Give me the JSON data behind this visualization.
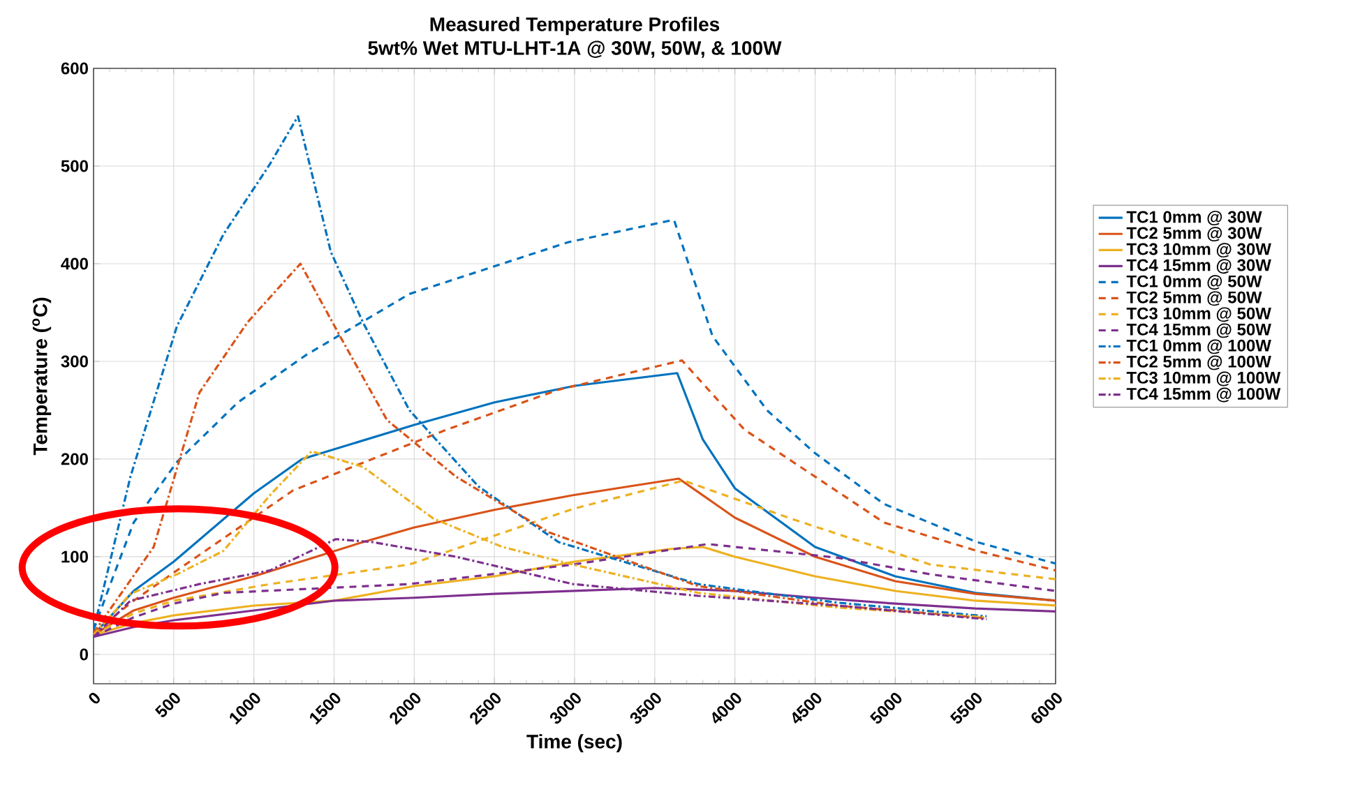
{
  "chart_data": {
    "type": "line",
    "title": "Measured Temperature Profiles",
    "subtitle": "5wt% Wet MTU-LHT-1A @ 30W, 50W, & 100W",
    "xlabel": "Time (sec)",
    "ylabel": "Temperature ($^{o}$C)",
    "xlim": [
      0,
      6000
    ],
    "ylim": [
      -30,
      600
    ],
    "xticks": [
      0,
      500,
      1000,
      1500,
      2000,
      2500,
      3000,
      3500,
      4000,
      4500,
      5000,
      5500,
      6000
    ],
    "yticks": [
      0,
      100,
      200,
      300,
      400,
      500,
      600
    ],
    "grid": true,
    "legend": "right",
    "series": [
      {
        "name": "TC1 0mm @ 30W",
        "color": "#0072bd",
        "line_style": "solid",
        "x": [
          0,
          250,
          500,
          1000,
          1300,
          2000,
          2500,
          3000,
          3640,
          3800,
          4000,
          4500,
          5000,
          5500,
          6000
        ],
        "values": [
          20,
          65,
          95,
          165,
          200,
          235,
          258,
          275,
          288,
          220,
          170,
          110,
          80,
          63,
          55
        ]
      },
      {
        "name": "TC2 5mm @ 30W",
        "color": "#d95319",
        "line_style": "solid",
        "x": [
          0,
          250,
          500,
          1000,
          1680,
          2000,
          2500,
          2990,
          3650,
          4000,
          4500,
          5000,
          5500,
          6000
        ],
        "values": [
          20,
          45,
          58,
          80,
          115,
          130,
          148,
          163,
          180,
          140,
          100,
          75,
          62,
          55
        ]
      },
      {
        "name": "TC3 10mm @ 30W",
        "color": "#edb120",
        "line_style": "solid",
        "x": [
          0,
          250,
          500,
          1000,
          1500,
          2000,
          2500,
          3000,
          3600,
          3800,
          4000,
          4500,
          5000,
          5500,
          6000
        ],
        "values": [
          20,
          32,
          40,
          50,
          55,
          70,
          80,
          95,
          108,
          110,
          100,
          80,
          65,
          55,
          50
        ]
      },
      {
        "name": "TC4 15mm @ 30W",
        "color": "#7e2f8e",
        "line_style": "solid",
        "x": [
          0,
          250,
          500,
          1000,
          1500,
          2000,
          2500,
          3000,
          3500,
          4000,
          4500,
          5000,
          5500,
          6000
        ],
        "values": [
          18,
          28,
          35,
          45,
          55,
          58,
          62,
          65,
          68,
          65,
          58,
          52,
          47,
          44
        ]
      },
      {
        "name": "TC1 0mm @ 50W",
        "color": "#0072bd",
        "line_style": "dashed",
        "x": [
          0,
          100,
          250,
          520,
          900,
          1330,
          1970,
          2960,
          3620,
          3860,
          4200,
          4500,
          4930,
          5510,
          6000
        ],
        "values": [
          25,
          70,
          135,
          197,
          258,
          307,
          369,
          422,
          445,
          326,
          250,
          206,
          154,
          115,
          93
        ]
      },
      {
        "name": "TC2 5mm @ 50W",
        "color": "#d95319",
        "line_style": "dashed",
        "x": [
          0,
          250,
          520,
          1245,
          2200,
          2900,
          3670,
          4060,
          4500,
          4930,
          5510,
          6000
        ],
        "values": [
          22,
          55,
          86,
          168,
          230,
          271,
          301,
          230,
          182,
          135,
          106,
          86
        ]
      },
      {
        "name": "TC3 10mm @ 50W",
        "color": "#edb120",
        "line_style": "dashed",
        "x": [
          0,
          250,
          500,
          1100,
          1970,
          2990,
          3680,
          4350,
          5220,
          6000
        ],
        "values": [
          20,
          42,
          55,
          72,
          92,
          149,
          178,
          139,
          92,
          77
        ]
      },
      {
        "name": "TC4 15mm @ 50W",
        "color": "#7e2f8e",
        "line_style": "dashed",
        "x": [
          0,
          250,
          500,
          810,
          1970,
          2990,
          3830,
          4640,
          5220,
          6000
        ],
        "values": [
          18,
          38,
          52,
          63,
          72,
          92,
          113,
          99,
          82,
          65
        ]
      },
      {
        "name": "TC1 0mm @ 100W",
        "color": "#0072bd",
        "line_style": "dashdot",
        "x": [
          0,
          230,
          520,
          810,
          1100,
          1275,
          1480,
          1680,
          1970,
          2400,
          2900,
          3770,
          4640,
          5570
        ],
        "values": [
          25,
          182,
          336,
          430,
          502,
          551,
          412,
          340,
          250,
          172,
          115,
          72,
          53,
          39
        ]
      },
      {
        "name": "TC2 5mm @ 100W",
        "color": "#d95319",
        "line_style": "dashdot",
        "x": [
          0,
          375,
          660,
          960,
          1290,
          1570,
          1830,
          2260,
          2840,
          3770,
          4640,
          5570
        ],
        "values": [
          22,
          110,
          268,
          340,
          400,
          316,
          240,
          182,
          125,
          70,
          50,
          37
        ]
      },
      {
        "name": "TC3 10mm @ 100W",
        "color": "#edb120",
        "line_style": "dashdot",
        "x": [
          0,
          230,
          520,
          810,
          1100,
          1360,
          1680,
          2120,
          2550,
          2990,
          3770,
          4640,
          5570
        ],
        "values": [
          20,
          62,
          82,
          106,
          163,
          208,
          192,
          139,
          110,
          92,
          63,
          48,
          38
        ]
      },
      {
        "name": "TC4 15mm @ 100W",
        "color": "#7e2f8e",
        "line_style": "dashdot",
        "x": [
          0,
          230,
          660,
          1100,
          1510,
          1740,
          2260,
          2990,
          3770,
          4640,
          5570
        ],
        "values": [
          18,
          55,
          72,
          86,
          118,
          115,
          100,
          72,
          60,
          50,
          36
        ]
      }
    ]
  }
}
